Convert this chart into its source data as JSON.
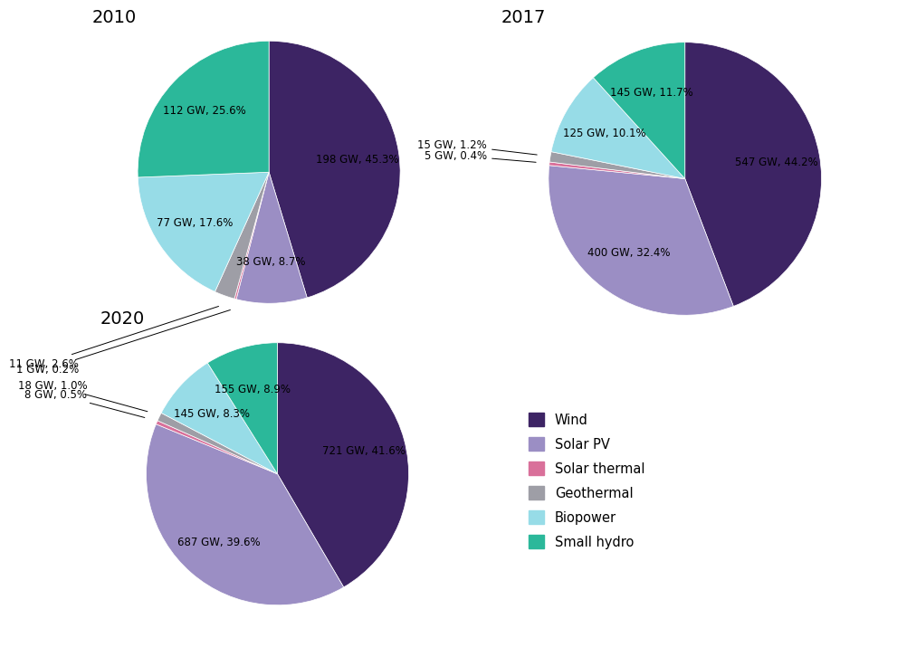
{
  "charts": [
    {
      "title": "2010",
      "values": [
        198,
        38,
        1,
        11,
        77,
        112
      ],
      "labels": [
        "198 GW, 45.3%",
        "38 GW, 8.7%",
        "1 GW, 0.2%",
        "11 GW, 2.6%",
        "77 GW, 17.6%",
        "112 GW, 25.6%"
      ]
    },
    {
      "title": "2017",
      "values": [
        547,
        400,
        5,
        15,
        125,
        145
      ],
      "labels": [
        "547 GW, 44.2%",
        "400 GW, 32.4%",
        "5 GW, 0.4%",
        "15 GW, 1.2%",
        "125 GW, 10.1%",
        "145 GW, 11.7%"
      ]
    },
    {
      "title": "2020",
      "values": [
        721,
        687,
        8,
        18,
        145,
        155
      ],
      "labels": [
        "721 GW, 41.6%",
        "687 GW, 39.6%",
        "8 GW, 0.5%",
        "18 GW, 1.0%",
        "145 GW, 8.3%",
        "155 GW, 8.9%"
      ]
    }
  ],
  "colors": [
    "#3d2464",
    "#9b8ec4",
    "#d9709a",
    "#9e9ea6",
    "#97dce7",
    "#2bb89a"
  ],
  "legend_labels": [
    "Wind",
    "Solar PV",
    "Solar thermal",
    "Geothermal",
    "Biopower",
    "Small hydro"
  ],
  "background_color": "#ffffff",
  "label_fontsize": 8.5,
  "title_fontsize": 14
}
